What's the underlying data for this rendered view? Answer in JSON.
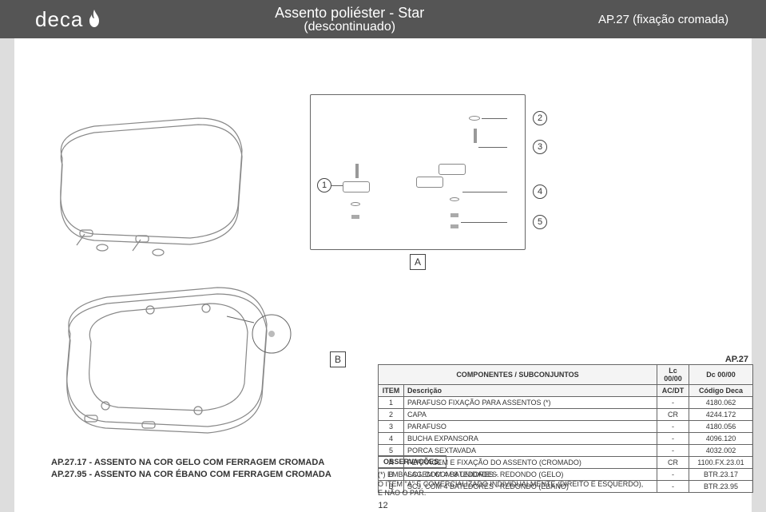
{
  "header": {
    "brand": "deca",
    "title_main": "Assento poliéster - Star",
    "title_sub": "(descontinuado)",
    "code_line": "AP.27 (fixação cromada)"
  },
  "diagram": {
    "frame_label": "A",
    "detail_label": "B",
    "callouts": [
      "1",
      "2",
      "3",
      "4",
      "5"
    ]
  },
  "parts_table": {
    "model": "AP.27",
    "header_left": "COMPONENTES / SUBCONJUNTOS",
    "header_lc": "Lc  00/00",
    "header_dc": "Dc  00/00",
    "col_item": "ITEM",
    "col_desc": "Descrição",
    "col_acdt": "AC/DT",
    "col_code": "Código Deca",
    "rows": [
      {
        "item": "1",
        "desc": "PARAFUSO FIXAÇÃO PARA ASSENTOS (*)",
        "acdt": "-",
        "code": "4180.062"
      },
      {
        "item": "2",
        "desc": "CAPA",
        "acdt": "CR",
        "code": "4244.172"
      },
      {
        "item": "3",
        "desc": "PARAFUSO",
        "acdt": "-",
        "code": "4180.056"
      },
      {
        "item": "4",
        "desc": "BUCHA EXPANSORA",
        "acdt": "-",
        "code": "4096.120"
      },
      {
        "item": "5",
        "desc": "PORCA SEXTAVADA",
        "acdt": "-",
        "code": "4032.002"
      },
      {
        "item": "A",
        "desc": "FERRAGEM E FIXAÇÃO DO ASSENTO (CROMADO)",
        "acdt": "CR",
        "code": "1100.FX.23.01"
      },
      {
        "item": "B",
        "desc": "SCJ. COM 4 BATEDORES - REDONDO (GELO)",
        "acdt": "-",
        "code": "BTR.23.17"
      },
      {
        "item": "B",
        "desc": "SCJ. COM 4 BATEDORES - REDONDO (ÉBANO)",
        "acdt": "-",
        "code": "BTR.23.95"
      }
    ]
  },
  "variants": {
    "line1": "AP.27.17 - ASSENTO NA COR GELO COM FERRAGEM CROMADA",
    "line2": "AP.27.95 - ASSENTO NA COR ÉBANO COM FERRAGEM CROMADA"
  },
  "observations": {
    "title": "OBSERVAÇÕES:",
    "line1": "(*) EMBALAGEM COM 8 UNIDADES.",
    "line2": "O ITEM \"A\" É COMERCIALIZADO INDIVIDUALMENTE (DIREITO E ESQUERDO),",
    "line3": "E NÃO O PAR."
  },
  "page_number": "12",
  "colors": {
    "header_bg": "#555555",
    "border": "#666666",
    "text": "#333333"
  }
}
